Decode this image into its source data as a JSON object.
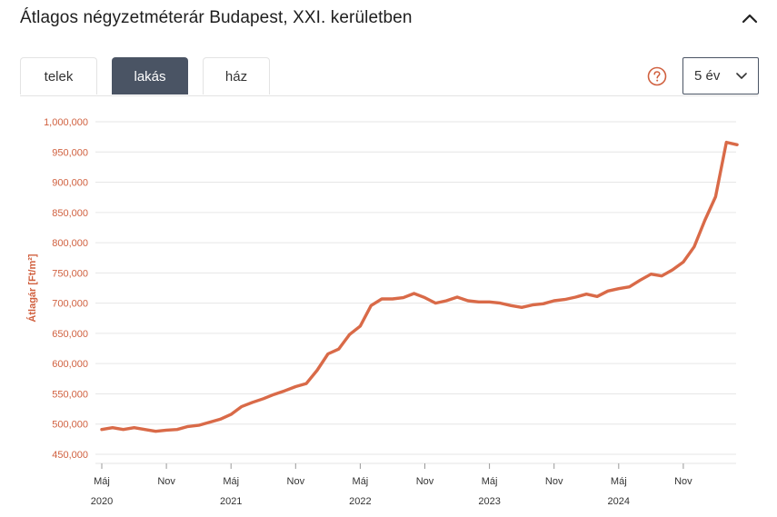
{
  "header": {
    "title": "Átlagos négyzetméterár Budapest, XXI. kerületben"
  },
  "tabs": [
    {
      "label": "telek",
      "active": false
    },
    {
      "label": "lakás",
      "active": true
    },
    {
      "label": "ház",
      "active": false
    }
  ],
  "period_select": {
    "value": "5 év"
  },
  "colors": {
    "line": "#d96a48",
    "tab_active": "#4a5464",
    "accent": "#d0603f"
  },
  "icons": {
    "collapse": "chevron-up-icon",
    "help": "question-circle-icon",
    "dropdown": "chevron-down-icon"
  },
  "chart_data": {
    "type": "line",
    "title": "",
    "ylabel": "Átlagár [Ft/m²]",
    "ylim": [
      440000,
      1000000
    ],
    "yticks": [
      1000000,
      950000,
      900000,
      850000,
      800000,
      750000,
      700000,
      650000,
      600000,
      550000,
      500000,
      450000
    ],
    "ytick_labels": [
      "1,000,000",
      "950,000",
      "900,000",
      "850,000",
      "800,000",
      "750,000",
      "700,000",
      "650,000",
      "600,000",
      "550,000",
      "500,000",
      "450,000"
    ],
    "xticks": [
      {
        "date": "2020-05",
        "label": "Máj",
        "year": "2020"
      },
      {
        "date": "2020-11",
        "label": "Nov",
        "year": ""
      },
      {
        "date": "2021-05",
        "label": "Máj",
        "year": "2021"
      },
      {
        "date": "2021-11",
        "label": "Nov",
        "year": ""
      },
      {
        "date": "2022-05",
        "label": "Máj",
        "year": "2022"
      },
      {
        "date": "2022-11",
        "label": "Nov",
        "year": ""
      },
      {
        "date": "2023-05",
        "label": "Máj",
        "year": "2023"
      },
      {
        "date": "2023-11",
        "label": "Nov",
        "year": ""
      },
      {
        "date": "2024-05",
        "label": "Máj",
        "year": "2024"
      },
      {
        "date": "2024-11",
        "label": "Nov",
        "year": ""
      }
    ],
    "grid": true,
    "series": [
      {
        "x": [
          "2020-05",
          "2020-06",
          "2020-07",
          "2020-08",
          "2020-09",
          "2020-10",
          "2020-11",
          "2020-12",
          "2021-01",
          "2021-02",
          "2021-03",
          "2021-04",
          "2021-05",
          "2021-06",
          "2021-07",
          "2021-08",
          "2021-09",
          "2021-10",
          "2021-11",
          "2021-12",
          "2022-01",
          "2022-02",
          "2022-03",
          "2022-04",
          "2022-05",
          "2022-06",
          "2022-07",
          "2022-08",
          "2022-09",
          "2022-10",
          "2022-11",
          "2022-12",
          "2023-01",
          "2023-02",
          "2023-03",
          "2023-04",
          "2023-05",
          "2023-06",
          "2023-07",
          "2023-08",
          "2023-09",
          "2023-10",
          "2023-11",
          "2023-12",
          "2024-01",
          "2024-02",
          "2024-03",
          "2024-04",
          "2024-05",
          "2024-06",
          "2024-07",
          "2024-08",
          "2024-09",
          "2024-10",
          "2024-11",
          "2024-12",
          "2025-01",
          "2025-02",
          "2025-03",
          "2025-04"
        ],
        "y": [
          491000,
          494000,
          491000,
          494000,
          491000,
          488000,
          490000,
          491000,
          496000,
          498000,
          503000,
          508000,
          516000,
          529000,
          536000,
          542000,
          549000,
          555000,
          562000,
          567000,
          589000,
          616000,
          624000,
          648000,
          662000,
          696000,
          707000,
          707000,
          709000,
          716000,
          709000,
          700000,
          704000,
          710000,
          704000,
          702000,
          702000,
          700000,
          696000,
          693000,
          697000,
          699000,
          704000,
          706000,
          710000,
          715000,
          711000,
          720000,
          724000,
          727000,
          738000,
          748000,
          745000,
          755000,
          768000,
          793000,
          837000,
          876000,
          966000,
          962000
        ]
      }
    ]
  }
}
